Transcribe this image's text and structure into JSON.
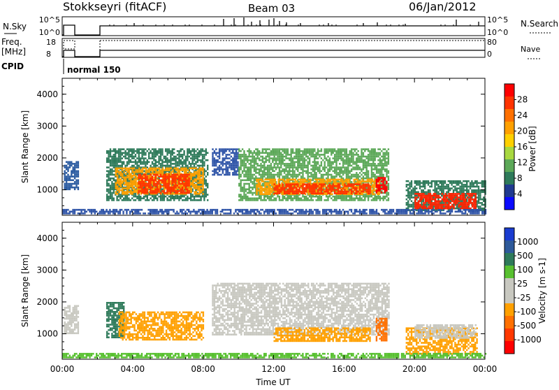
{
  "header": {
    "title": "Stokkseyri (fitACF)",
    "beam": "Beam 03",
    "date": "06/Jan/2012"
  },
  "status_panels": {
    "nsky_label": "N.Sky",
    "nsky_ticks": [
      "10^5",
      "10^0"
    ],
    "nsearch_label": "N.Search",
    "nsearch_ticks": [
      "10^5",
      "10^0"
    ],
    "freq_label_1": "Freq.",
    "freq_label_2": "[MHz]",
    "freq_ticks": [
      "18",
      "8"
    ],
    "nave_label": "Nave",
    "nave_ticks": [
      "80",
      "0"
    ],
    "cpid_label": "CPID",
    "cpid_text": "normal 150"
  },
  "chart_data": [
    {
      "type": "heatmap",
      "name": "power",
      "ylabel": "Slant Range [km]",
      "ylim": [
        200,
        4500
      ],
      "yticks": [
        "1000",
        "2000",
        "3000",
        "4000"
      ],
      "xlim_hours": [
        0,
        24
      ],
      "colorbar_label": "Power [dB]",
      "colorbar_ticks": [
        "28",
        "24",
        "20",
        "16",
        "12",
        "8",
        "4"
      ],
      "colorbar_colors": [
        "#ff0000",
        "#ff3300",
        "#ff7000",
        "#ffa000",
        "#ffd000",
        "#a8d840",
        "#5ca858",
        "#2e7a5a",
        "#203a90",
        "#0a0aff"
      ],
      "regions": [
        {
          "t0": 0.1,
          "t1": 0.9,
          "r0": 1000,
          "r1": 1900,
          "c": "#2a5aa0"
        },
        {
          "t0": 2.5,
          "t1": 8.3,
          "r0": 700,
          "r1": 2300,
          "c": "#2e7a5a"
        },
        {
          "t0": 3.0,
          "t1": 8.0,
          "r0": 850,
          "r1": 1700,
          "c": "#ffa000"
        },
        {
          "t0": 4.3,
          "t1": 7.2,
          "r0": 900,
          "r1": 1500,
          "c": "#ff3300"
        },
        {
          "t0": 8.5,
          "t1": 10.0,
          "r0": 1500,
          "r1": 2300,
          "c": "#3055a8"
        },
        {
          "t0": 10.0,
          "t1": 18.5,
          "r0": 650,
          "r1": 2300,
          "c": "#5ca858"
        },
        {
          "t0": 11.0,
          "t1": 18.0,
          "r0": 850,
          "r1": 1350,
          "c": "#ffa000"
        },
        {
          "t0": 12.0,
          "t1": 17.5,
          "r0": 900,
          "r1": 1200,
          "c": "#ff3300"
        },
        {
          "t0": 17.8,
          "t1": 18.4,
          "r0": 900,
          "r1": 1400,
          "c": "#ff0000"
        },
        {
          "t0": 19.5,
          "t1": 24.0,
          "r0": 350,
          "r1": 1300,
          "c": "#2e7a5a"
        },
        {
          "t0": 20.0,
          "t1": 23.5,
          "r0": 400,
          "r1": 900,
          "c": "#ff2200"
        },
        {
          "t0": 0.0,
          "t1": 24.0,
          "r0": 250,
          "r1": 400,
          "c": "#3055a8"
        }
      ]
    },
    {
      "type": "heatmap",
      "name": "velocity",
      "ylabel": "Slant Range [km]",
      "ylim": [
        200,
        4500
      ],
      "yticks": [
        "1000",
        "2000",
        "3000",
        "4000"
      ],
      "xlim_hours": [
        0,
        24
      ],
      "xticks": [
        "00:00",
        "04:00",
        "08:00",
        "12:00",
        "16:00",
        "20:00",
        "00:00"
      ],
      "xlabel": "Time UT",
      "colorbar_label": "Velocity [m s-1]",
      "colorbar_ticks": [
        "1000",
        "500",
        "100",
        "25",
        "-25",
        "-100",
        "-500",
        "-1000"
      ],
      "colorbar_colors": [
        "#1a3cd0",
        "#2e5a9a",
        "#2e7a5a",
        "#58c030",
        "#c8c8c0",
        "#c8c8c0",
        "#ffa000",
        "#ff7000",
        "#ff3800",
        "#ff0000"
      ],
      "regions": [
        {
          "t0": 0.1,
          "t1": 0.9,
          "r0": 1000,
          "r1": 1900,
          "c": "#c8c8c0"
        },
        {
          "t0": 2.5,
          "t1": 3.5,
          "r0": 900,
          "r1": 2000,
          "c": "#2e7a5a"
        },
        {
          "t0": 3.2,
          "t1": 8.0,
          "r0": 800,
          "r1": 1700,
          "c": "#ffa000"
        },
        {
          "t0": 8.5,
          "t1": 18.5,
          "r0": 1000,
          "r1": 2600,
          "c": "#c8c8c0"
        },
        {
          "t0": 12.0,
          "t1": 17.5,
          "r0": 800,
          "r1": 1200,
          "c": "#ffa000"
        },
        {
          "t0": 17.8,
          "t1": 18.4,
          "r0": 800,
          "r1": 1500,
          "c": "#ff7000"
        },
        {
          "t0": 19.5,
          "t1": 23.5,
          "r0": 350,
          "r1": 1200,
          "c": "#ffa000"
        },
        {
          "t0": 20.0,
          "t1": 23.5,
          "r0": 900,
          "r1": 1300,
          "c": "#c8c8c0"
        },
        {
          "t0": 0.0,
          "t1": 24.0,
          "r0": 250,
          "r1": 400,
          "c": "#58c030"
        }
      ]
    }
  ]
}
